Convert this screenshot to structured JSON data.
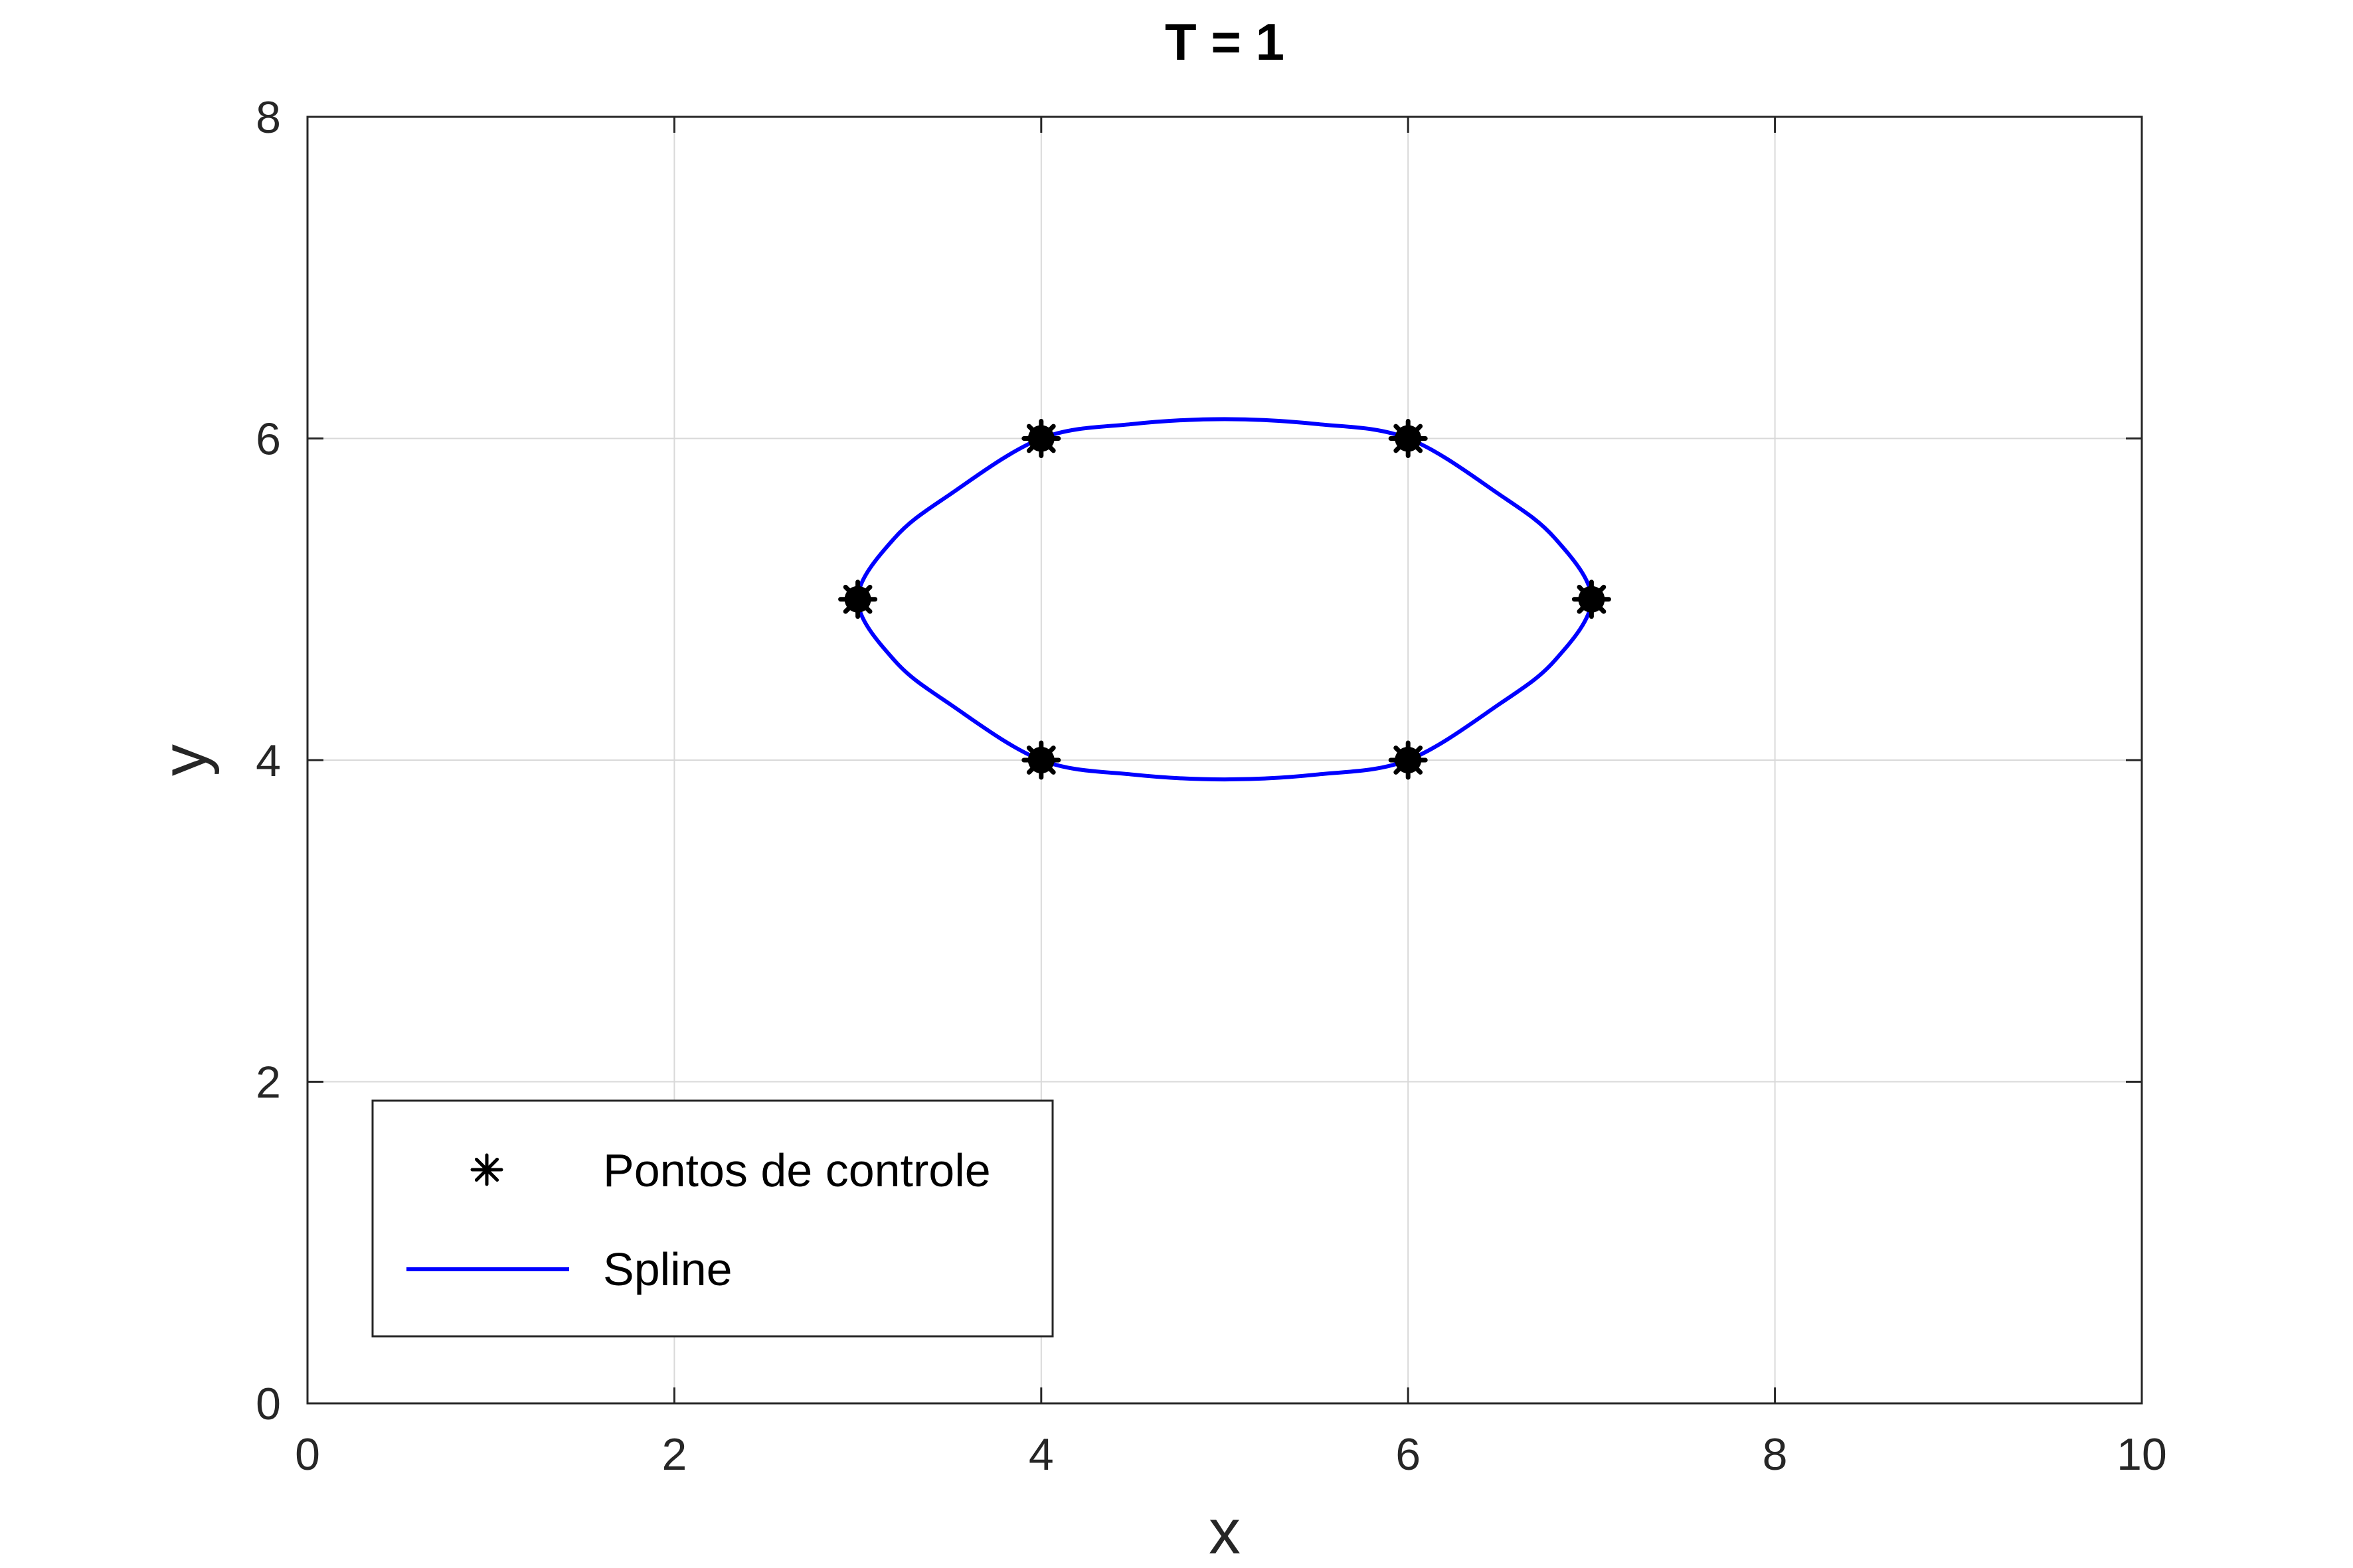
{
  "chart_data": {
    "type": "line",
    "title": "T = 1",
    "xlabel": "x",
    "ylabel": "y",
    "xlim": [
      0,
      10
    ],
    "ylim": [
      0,
      8
    ],
    "xticks": [
      0,
      2,
      4,
      6,
      8,
      10
    ],
    "yticks": [
      0,
      2,
      4,
      6,
      8
    ],
    "xtick_labels": [
      "0",
      "2",
      "4",
      "6",
      "8",
      "10"
    ],
    "ytick_labels": [
      "0",
      "2",
      "4",
      "6",
      "8"
    ],
    "grid": true,
    "legend_position": "bottom-left",
    "series": [
      {
        "name": "Pontos de controle",
        "kind": "markers",
        "marker": "asterisk",
        "color": "#000000",
        "points": [
          [
            4,
            6
          ],
          [
            6,
            6
          ],
          [
            3,
            5
          ],
          [
            7,
            5
          ],
          [
            4,
            4
          ],
          [
            6,
            4
          ]
        ]
      },
      {
        "name": "Spline",
        "kind": "line",
        "color": "#0000ff",
        "points": [
          [
            3,
            5
          ],
          [
            3.2,
            5.38
          ],
          [
            3.5,
            5.65
          ],
          [
            4,
            6
          ],
          [
            4.5,
            6.09
          ],
          [
            5,
            6.12
          ],
          [
            5.5,
            6.09
          ],
          [
            6,
            6
          ],
          [
            6.5,
            5.65
          ],
          [
            6.8,
            5.38
          ],
          [
            7,
            5
          ],
          [
            6.8,
            4.62
          ],
          [
            6.5,
            4.35
          ],
          [
            6,
            4
          ],
          [
            5.5,
            3.91
          ],
          [
            5,
            3.88
          ],
          [
            4.5,
            3.91
          ],
          [
            4,
            4
          ],
          [
            3.5,
            4.35
          ],
          [
            3.2,
            4.62
          ],
          [
            3,
            5
          ]
        ]
      }
    ]
  }
}
